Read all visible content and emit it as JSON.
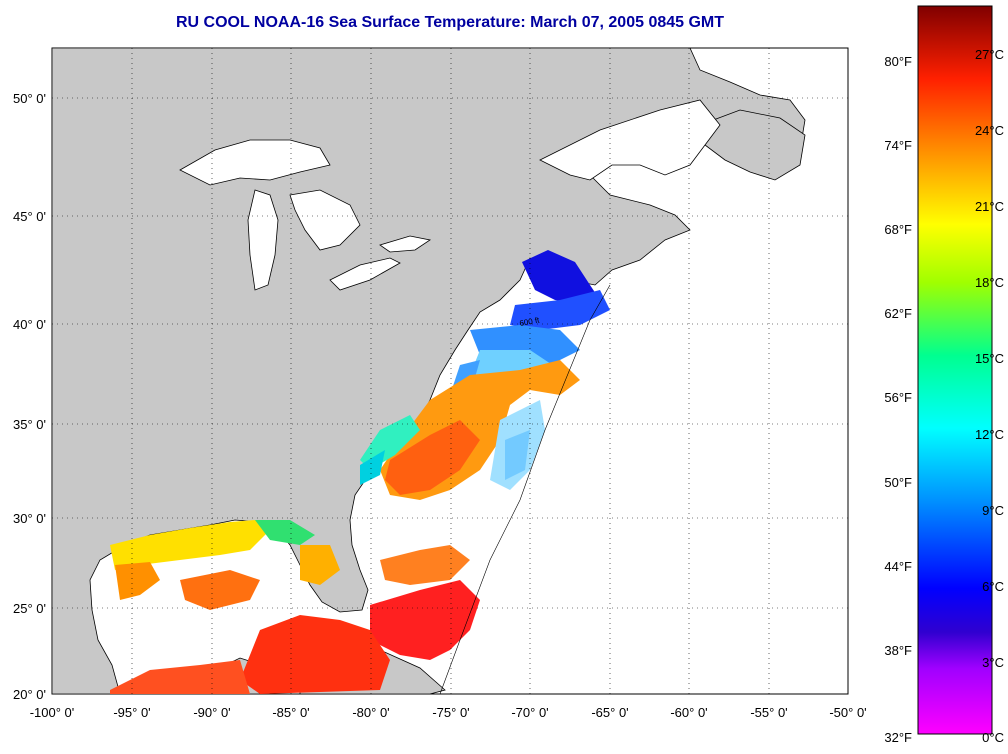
{
  "title": "RU COOL  NOAA-16  Sea Surface Temperature:  March 07, 2005 0845 GMT",
  "colors": {
    "title": "#0000a0",
    "land": "#c8c8c8",
    "no_data": "#ffffff",
    "coast": "#000000",
    "grid": "#000000"
  },
  "lon_ticks": [
    "-100° 0'",
    "-95° 0'",
    "-90° 0'",
    "-85° 0'",
    "-80° 0'",
    "-75° 0'",
    "-70° 0'",
    "-65° 0'",
    "-60° 0'",
    "-55° 0'",
    "-50° 0'"
  ],
  "lat_ticks": [
    "50° 0'",
    "45° 0'",
    "40° 0'",
    "35° 0'",
    "30° 0'",
    "25° 0'",
    "20° 0'"
  ],
  "isobath_label": "600 ft",
  "colorbar": {
    "fahrenheit": [
      "80°F",
      "74°F",
      "68°F",
      "62°F",
      "56°F",
      "50°F",
      "44°F",
      "38°F",
      "32°F"
    ],
    "celsius": [
      "27°C",
      "24°C",
      "21°C",
      "18°C",
      "15°C",
      "12°C",
      "9°C",
      "6°C",
      "3°C",
      "0°C"
    ],
    "stops": [
      "#ff00ff",
      "#8000ff",
      "#0000ff",
      "#0080ff",
      "#00ffff",
      "#00ff80",
      "#80ff00",
      "#ffff00",
      "#ff8000",
      "#ff0000",
      "#800000"
    ]
  }
}
